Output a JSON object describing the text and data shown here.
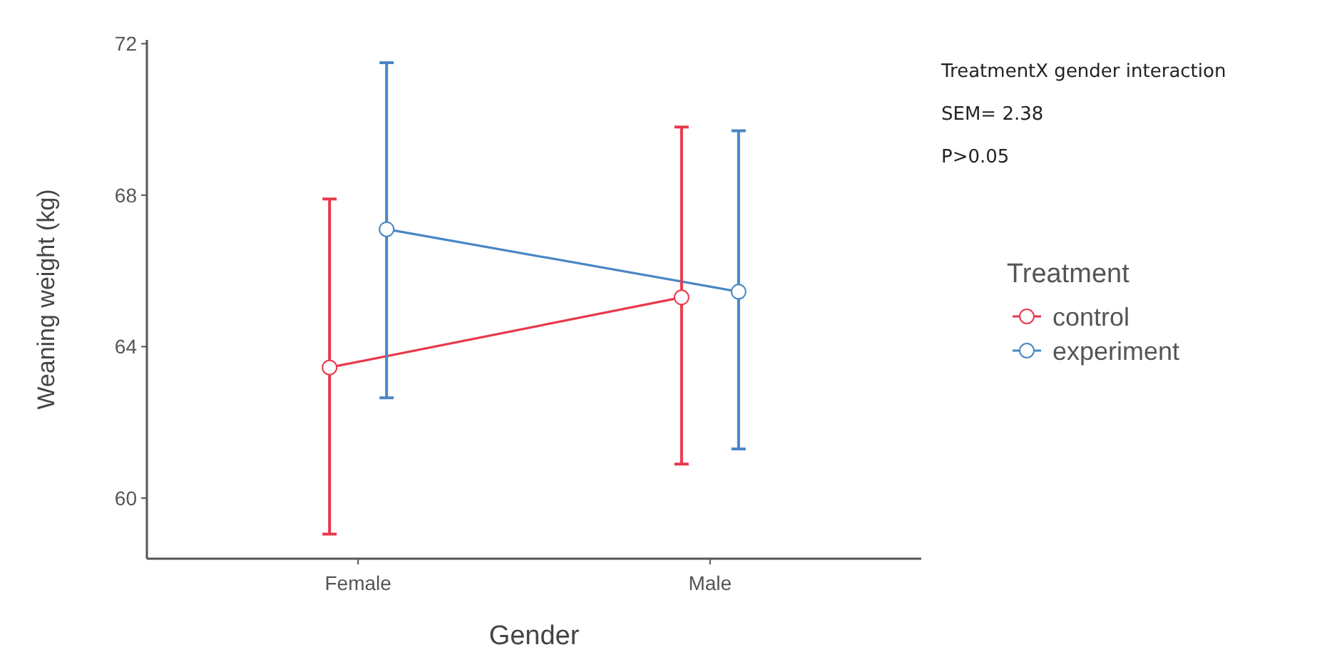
{
  "chart_data": {
    "type": "line",
    "xlabel": "Gender",
    "ylabel": "Weaning weight (kg)",
    "legend_title": "Treatment",
    "legend": "right",
    "marker": "circle",
    "line_style": "solid",
    "grid": false,
    "categories": [
      "Female",
      "Male"
    ],
    "ylim": [
      58.4,
      72.1
    ],
    "yticks": [
      60,
      64,
      68,
      72
    ],
    "series": [
      {
        "name": "control",
        "color": "#e8394a",
        "values": [
          63.45,
          65.3
        ],
        "errors": [
          [
            59.05,
            67.9
          ],
          [
            60.9,
            69.8
          ]
        ]
      },
      {
        "name": "experiment",
        "color": "#4a86c5",
        "values": [
          67.1,
          65.45
        ],
        "errors": [
          [
            62.65,
            71.5
          ],
          [
            61.3,
            69.7
          ]
        ]
      }
    ],
    "annotations": [
      "TreatmentX gender interaction",
      "SEM= 2.38",
      "P>0.05"
    ]
  }
}
